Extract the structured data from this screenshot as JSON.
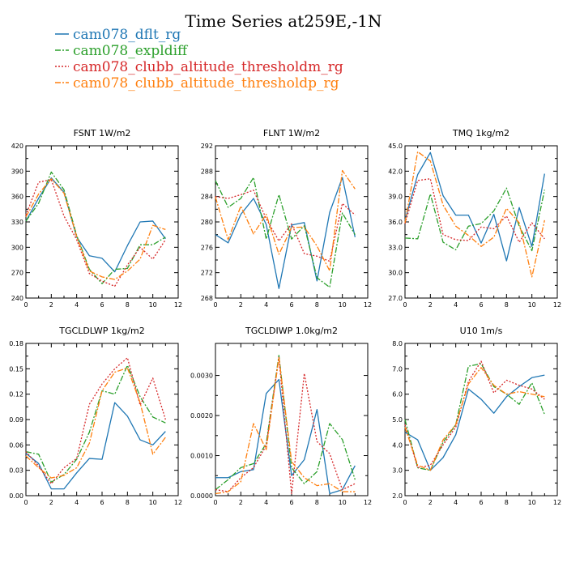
{
  "page_title": "Time Series at259E,-1N",
  "legend": [
    {
      "label": "cam078_dflt_rg",
      "color": "#1f77b4",
      "dash": "solid"
    },
    {
      "label": "cam078_expldiff",
      "color": "#2ca02c",
      "dash": "dashdot"
    },
    {
      "label": "cam078_clubb_altitude_thresholdm_rg",
      "color": "#d62728",
      "dash": "dotted"
    },
    {
      "label": "cam078_clubb_altitude_thresholdp_rg",
      "color": "#ff7f0e",
      "dash": "dashdot"
    }
  ],
  "chart_data": [
    {
      "type": "line",
      "title": "FSNT 1W/m2",
      "variable": "FSNT",
      "units": "1W/m2",
      "xlim": [
        0,
        12
      ],
      "ylim": [
        240,
        420
      ],
      "xticks": [
        "0",
        "2",
        "4",
        "6",
        "8",
        "10",
        "12"
      ],
      "yticks": [
        "240",
        "270",
        "300",
        "330",
        "360",
        "390",
        "420"
      ],
      "x": [
        0,
        1,
        2,
        3,
        4,
        5,
        6,
        7,
        8,
        9,
        10,
        11
      ],
      "series": [
        {
          "name": "cam078_dflt_rg",
          "values": [
            331,
            358,
            382,
            365,
            312,
            290,
            287,
            271,
            302,
            330,
            331,
            310
          ]
        },
        {
          "name": "cam078_expldiff",
          "values": [
            331,
            352,
            389,
            368,
            314,
            274,
            257,
            274,
            275,
            303,
            303,
            312
          ]
        },
        {
          "name": "cam078_clubb_altitude_thresholdm_rg",
          "values": [
            338,
            377,
            380,
            337,
            309,
            269,
            260,
            254,
            279,
            300,
            286,
            309
          ]
        },
        {
          "name": "cam078_clubb_altitude_thresholdp_rg",
          "values": [
            336,
            363,
            381,
            364,
            313,
            272,
            265,
            262,
            272,
            286,
            326,
            321
          ]
        }
      ]
    },
    {
      "type": "line",
      "title": "FLNT 1W/m2",
      "variable": "FLNT",
      "units": "1W/m2",
      "xlim": [
        0,
        12
      ],
      "ylim": [
        268,
        292
      ],
      "xticks": [
        "0",
        "2",
        "4",
        "6",
        "8",
        "10",
        "12"
      ],
      "yticks": [
        "268",
        "272",
        "276",
        "280",
        "284",
        "288",
        "292"
      ],
      "x": [
        0,
        1,
        2,
        3,
        4,
        5,
        6,
        7,
        8,
        9,
        10,
        11
      ],
      "series": [
        {
          "name": "cam078_dflt_rg",
          "values": [
            278,
            276.7,
            281.2,
            283.7,
            279.6,
            269.5,
            279.5,
            279.9,
            270.7,
            281.5,
            287,
            277.6
          ]
        },
        {
          "name": "cam078_expldiff",
          "values": [
            286.5,
            282.3,
            283.7,
            287,
            277.3,
            284.3,
            277.3,
            279.4,
            271.2,
            269.7,
            281.4,
            278
          ]
        },
        {
          "name": "cam078_clubb_altitude_thresholdm_rg",
          "values": [
            284,
            283.7,
            284.3,
            285,
            280.5,
            277,
            279.7,
            275,
            274.6,
            273.8,
            282.9,
            281.1
          ]
        },
        {
          "name": "cam078_clubb_altitude_thresholdp_rg",
          "values": [
            283.9,
            277.2,
            282.5,
            278.1,
            281.2,
            274.9,
            279.1,
            279.2,
            276.2,
            272.3,
            288.1,
            285.2
          ]
        }
      ]
    },
    {
      "type": "line",
      "title": "TMQ 1kg/m2",
      "variable": "TMQ",
      "units": "1kg/m2",
      "xlim": [
        0,
        12
      ],
      "ylim": [
        27,
        45
      ],
      "xticks": [
        "0",
        "2",
        "4",
        "6",
        "8",
        "10",
        "12"
      ],
      "yticks": [
        "27.0",
        "30.0",
        "33.0",
        "36.0",
        "39.0",
        "42.0",
        "45.0"
      ],
      "x": [
        0,
        1,
        2,
        3,
        4,
        5,
        6,
        7,
        8,
        9,
        10,
        11
      ],
      "series": [
        {
          "name": "cam078_dflt_rg",
          "values": [
            36.2,
            41.6,
            44.2,
            39.1,
            36.8,
            36.8,
            33.5,
            36.9,
            31.4,
            37.7,
            33.1,
            41.7
          ]
        },
        {
          "name": "cam078_expldiff",
          "values": [
            34.1,
            34,
            39.3,
            33.6,
            32.7,
            35.5,
            35.8,
            37.3,
            40,
            35.5,
            32.6,
            39.8
          ]
        },
        {
          "name": "cam078_clubb_altitude_thresholdm_rg",
          "values": [
            35.8,
            40.9,
            41.1,
            34.5,
            33.9,
            33.8,
            35.4,
            35.2,
            36.7,
            33.6,
            35.9,
            34
          ]
        },
        {
          "name": "cam078_clubb_altitude_thresholdp_rg",
          "values": [
            35.9,
            44.3,
            43.2,
            38,
            35.5,
            34.4,
            33.1,
            34.2,
            37.6,
            35.9,
            29.5,
            36.2
          ]
        }
      ]
    },
    {
      "type": "line",
      "title": "TGCLDLWP 1kg/m2",
      "variable": "TGCLDLWP",
      "units": "1kg/m2",
      "xlim": [
        0,
        12
      ],
      "ylim": [
        0,
        0.18
      ],
      "xticks": [
        "0",
        "2",
        "4",
        "6",
        "8",
        "10",
        "12"
      ],
      "yticks": [
        "0.00",
        "0.03",
        "0.06",
        "0.09",
        "0.12",
        "0.15",
        "0.18"
      ],
      "x": [
        0,
        1,
        2,
        3,
        4,
        5,
        6,
        7,
        8,
        9,
        10,
        11
      ],
      "series": [
        {
          "name": "cam078_dflt_rg",
          "values": [
            0.05,
            0.038,
            0.008,
            0.008,
            0.027,
            0.044,
            0.043,
            0.11,
            0.094,
            0.066,
            0.06,
            0.076
          ]
        },
        {
          "name": "cam078_expldiff",
          "values": [
            0.052,
            0.049,
            0.016,
            0.025,
            0.043,
            0.075,
            0.124,
            0.12,
            0.154,
            0.117,
            0.093,
            0.086
          ]
        },
        {
          "name": "cam078_clubb_altitude_thresholdm_rg",
          "values": [
            0.052,
            0.035,
            0.014,
            0.033,
            0.044,
            0.108,
            0.132,
            0.15,
            0.163,
            0.107,
            0.139,
            0.09
          ]
        },
        {
          "name": "cam078_clubb_altitude_thresholdp_rg",
          "values": [
            0.047,
            0.033,
            0.021,
            0.024,
            0.033,
            0.062,
            0.124,
            0.146,
            0.151,
            0.11,
            0.049,
            0.069
          ]
        }
      ]
    },
    {
      "type": "line",
      "title": "TGCLDIWP 1.0kg/m2",
      "variable": "TGCLDIWP",
      "units": "1.0kg/m2",
      "xlim": [
        0,
        12
      ],
      "ylim": [
        0,
        0.0038
      ],
      "xticks": [
        "0",
        "2",
        "4",
        "6",
        "8",
        "10",
        "12"
      ],
      "yticks": [
        "0.0000",
        "0.0010",
        "0.0020",
        "0.0030"
      ],
      "ytick_values": [
        0,
        0.001,
        0.002,
        0.003
      ],
      "x": [
        0,
        1,
        2,
        3,
        4,
        5,
        6,
        7,
        8,
        9,
        10,
        11
      ],
      "series": [
        {
          "name": "cam078_dflt_rg",
          "values": [
            0.00045,
            0.00045,
            0.0006,
            0.00065,
            0.00255,
            0.0029,
            0.0005,
            0.0009,
            0.00215,
            5e-05,
            0.00015,
            0.00075
          ]
        },
        {
          "name": "cam078_expldiff",
          "values": [
            0.00015,
            0.0004,
            0.0007,
            0.0008,
            0.0013,
            0.0035,
            0.0007,
            0.0003,
            0.0006,
            0.0018,
            0.0014,
            0.0004
          ]
        },
        {
          "name": "cam078_clubb_altitude_thresholdm_rg",
          "values": [
            0.00015,
            0.0001,
            0.00045,
            0.0007,
            0.00125,
            0.00345,
            5e-05,
            0.00305,
            0.00135,
            0.00105,
            0.00015,
            0.0003
          ]
        },
        {
          "name": "cam078_clubb_altitude_thresholdp_rg",
          "values": [
            5e-05,
            0.0001,
            0.00035,
            0.0018,
            0.00115,
            0.00345,
            0.00085,
            0.00045,
            0.00025,
            0.0003,
            0.0001,
            0.0001
          ]
        }
      ]
    },
    {
      "type": "line",
      "title": "U10 1m/s",
      "variable": "U10",
      "units": "1m/s",
      "xlim": [
        0,
        12
      ],
      "ylim": [
        2,
        8
      ],
      "xticks": [
        "0",
        "2",
        "4",
        "6",
        "8",
        "10",
        "12"
      ],
      "yticks": [
        "2.0",
        "3.0",
        "4.0",
        "5.0",
        "6.0",
        "7.0",
        "8.0"
      ],
      "x": [
        0,
        1,
        2,
        3,
        4,
        5,
        6,
        7,
        8,
        9,
        10,
        11
      ],
      "series": [
        {
          "name": "cam078_dflt_rg",
          "values": [
            4.5,
            4.2,
            3.0,
            3.5,
            4.4,
            6.2,
            5.8,
            5.25,
            5.9,
            6.3,
            6.65,
            6.75
          ]
        },
        {
          "name": "cam078_expldiff",
          "values": [
            5.0,
            3.1,
            3.0,
            4.1,
            4.8,
            7.1,
            7.2,
            6.3,
            6.0,
            5.6,
            6.45,
            5.2
          ]
        },
        {
          "name": "cam078_clubb_altitude_thresholdm_rg",
          "values": [
            4.8,
            3.1,
            3.2,
            4.0,
            4.7,
            6.5,
            7.3,
            6.05,
            6.55,
            6.35,
            6.2,
            5.8
          ]
        },
        {
          "name": "cam078_clubb_altitude_thresholdp_rg",
          "values": [
            4.7,
            3.2,
            3.0,
            4.2,
            4.8,
            6.4,
            7.05,
            6.35,
            6.0,
            6.1,
            6.0,
            5.9
          ]
        }
      ]
    }
  ]
}
